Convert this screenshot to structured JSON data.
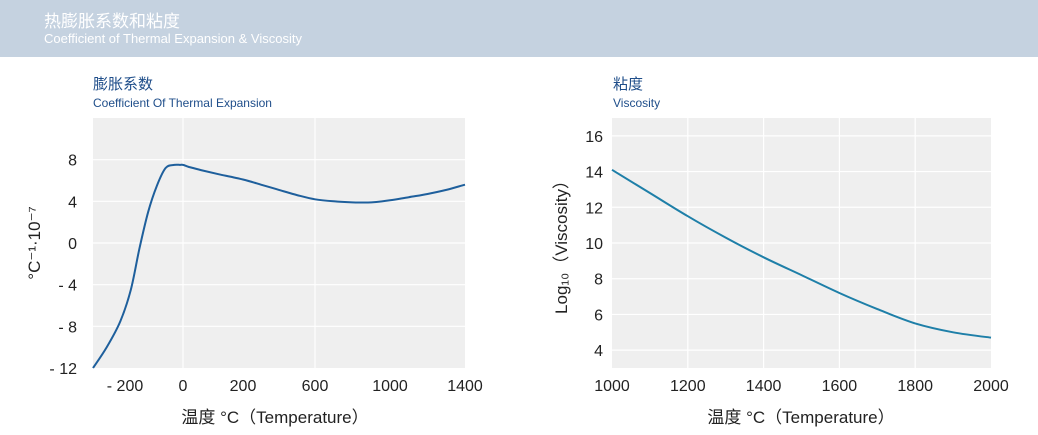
{
  "header": {
    "title": "热膨胀系数和粘度",
    "subtitle": "Coefficient of Thermal Expansion & Viscosity"
  },
  "colors": {
    "line_left": "#1e5f9c",
    "line_right": "#1e7fa8",
    "plot_bg": "#efefef",
    "header_bg": "#c5d2e0",
    "title": "#1f4e8a"
  },
  "chart_data": [
    {
      "type": "line",
      "title": "膨胀系数",
      "subtitle": "Coefficient Of Thermal Expansion",
      "xlabel": "温度 °C（Temperature）",
      "ylabel": "°C⁻¹·10⁻⁷",
      "xtick_labels": [
        "- 200",
        "0",
        "200",
        "600",
        "1000",
        "1400"
      ],
      "ytick_labels": [
        "8",
        "4",
        "0",
        "- 4",
        "- 8",
        "- 12"
      ],
      "ylim": [
        -12,
        12
      ],
      "grid": true,
      "x": [
        -270,
        -240,
        -210,
        -180,
        -150,
        -120,
        -90,
        -60,
        -30,
        -10,
        0,
        20,
        60,
        120,
        200,
        300,
        400,
        500,
        600,
        700,
        800,
        900,
        1000,
        1100,
        1200,
        1300,
        1400
      ],
      "y": [
        -12,
        -10,
        -7.5,
        -4.5,
        -0.5,
        3,
        5.5,
        7.2,
        7.5,
        7.5,
        7.5,
        7.3,
        7.0,
        6.6,
        6.1,
        5.6,
        5.1,
        4.6,
        4.2,
        4.0,
        3.9,
        3.9,
        4.1,
        4.4,
        4.7,
        5.1,
        5.6
      ]
    },
    {
      "type": "line",
      "title": "粘度",
      "subtitle": "Viscosity",
      "xlabel": "温度 °C（Temperature）",
      "ylabel": "Log₁₀（Viscosity）",
      "xlim": [
        1000,
        2000
      ],
      "ylim": [
        3,
        17
      ],
      "xticks": [
        1000,
        1200,
        1400,
        1600,
        1800,
        2000
      ],
      "yticks": [
        4,
        6,
        8,
        10,
        12,
        14,
        16
      ],
      "grid": true,
      "x": [
        1000,
        1100,
        1200,
        1300,
        1400,
        1500,
        1600,
        1700,
        1800,
        1900,
        2000
      ],
      "y": [
        14.1,
        12.8,
        11.5,
        10.3,
        9.2,
        8.2,
        7.2,
        6.3,
        5.5,
        5.0,
        4.7
      ]
    }
  ]
}
